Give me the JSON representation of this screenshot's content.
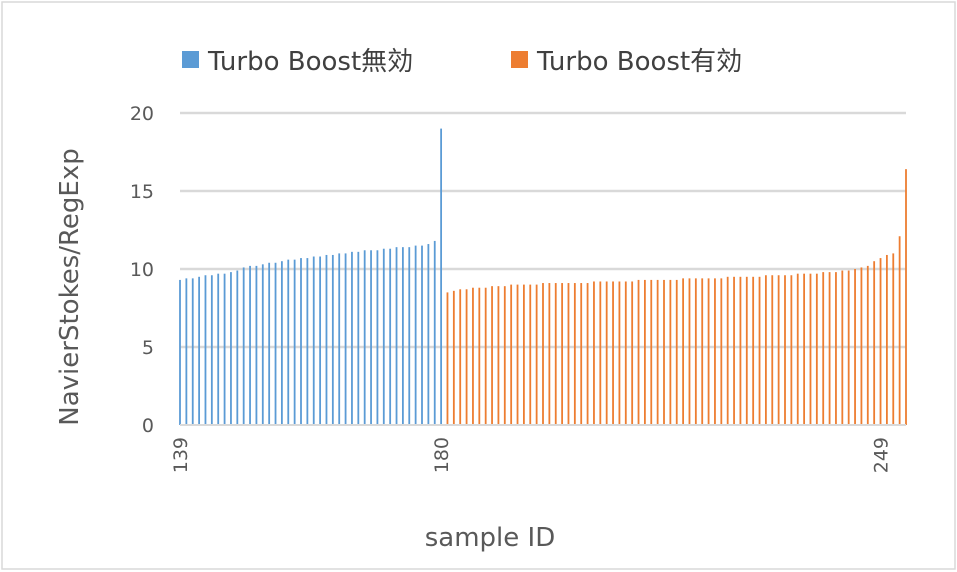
{
  "chart_data": {
    "type": "bar",
    "xlabel": "sample ID",
    "ylabel": "NavierStokes/RegExp",
    "ylim": [
      0,
      20
    ],
    "yticks": [
      0,
      5,
      10,
      15,
      20
    ],
    "xtick_labels": [
      "139",
      "180",
      "249"
    ],
    "grid": true,
    "legend_position": "top",
    "series": [
      {
        "name": "Turbo Boost無効",
        "color": "#5b9bd5",
        "x_start": 139,
        "values": [
          9.3,
          9.4,
          9.4,
          9.5,
          9.6,
          9.6,
          9.7,
          9.7,
          9.8,
          9.9,
          10.1,
          10.2,
          10.2,
          10.3,
          10.4,
          10.4,
          10.5,
          10.6,
          10.6,
          10.7,
          10.7,
          10.8,
          10.8,
          10.9,
          10.9,
          11.0,
          11.0,
          11.1,
          11.1,
          11.2,
          11.2,
          11.2,
          11.3,
          11.3,
          11.4,
          11.4,
          11.4,
          11.5,
          11.5,
          11.6,
          11.8,
          19.0
        ]
      },
      {
        "name": "Turbo Boost有効",
        "color": "#ed7d31",
        "x_start": 181,
        "values": [
          8.5,
          8.6,
          8.7,
          8.7,
          8.8,
          8.8,
          8.8,
          8.9,
          8.9,
          8.9,
          9.0,
          9.0,
          9.0,
          9.0,
          9.0,
          9.1,
          9.1,
          9.1,
          9.1,
          9.1,
          9.1,
          9.1,
          9.1,
          9.2,
          9.2,
          9.2,
          9.2,
          9.2,
          9.2,
          9.2,
          9.3,
          9.3,
          9.3,
          9.3,
          9.3,
          9.3,
          9.3,
          9.4,
          9.4,
          9.4,
          9.4,
          9.4,
          9.4,
          9.4,
          9.5,
          9.5,
          9.5,
          9.5,
          9.5,
          9.5,
          9.6,
          9.6,
          9.6,
          9.6,
          9.6,
          9.7,
          9.7,
          9.7,
          9.7,
          9.8,
          9.8,
          9.8,
          9.9,
          9.9,
          10.0,
          10.1,
          10.2,
          10.5,
          10.7,
          10.9,
          11.0,
          12.1,
          16.4
        ]
      }
    ]
  }
}
